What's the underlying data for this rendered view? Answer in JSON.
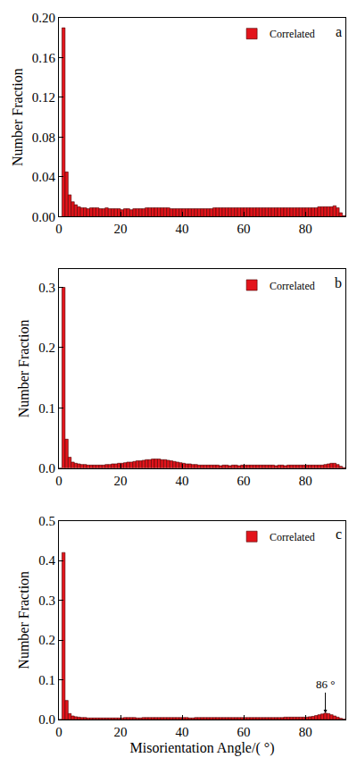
{
  "chart_data": [
    {
      "type": "histogram",
      "title": "a",
      "ylabel": "Number Fraction",
      "legend": "top right",
      "xlim": [
        0,
        93
      ],
      "xticks": [
        0,
        20,
        40,
        60,
        80
      ],
      "ylim": [
        0,
        0.2
      ],
      "yticks": [
        {
          "value": 0,
          "label": "0.00"
        },
        {
          "value": 0.04,
          "label": "0.04"
        },
        {
          "value": 0.08,
          "label": "0.08"
        },
        {
          "value": 0.12,
          "label": "0.12"
        },
        {
          "value": 0.16,
          "label": "0.16"
        },
        {
          "value": 0.2,
          "label": "0.20"
        }
      ],
      "bins": [
        0,
        1,
        2,
        3,
        4,
        5,
        6,
        7,
        8,
        9,
        10,
        11,
        12,
        13,
        14,
        15,
        16,
        17,
        18,
        19,
        20,
        21,
        22,
        23,
        24,
        25,
        26,
        27,
        28,
        29,
        30,
        31,
        32,
        33,
        34,
        35,
        36,
        37,
        38,
        39,
        40,
        41,
        42,
        43,
        44,
        45,
        46,
        47,
        48,
        49,
        50,
        51,
        52,
        53,
        54,
        55,
        56,
        57,
        58,
        59,
        60,
        61,
        62,
        63,
        64,
        65,
        66,
        67,
        68,
        69,
        70,
        71,
        72,
        73,
        74,
        75,
        76,
        77,
        78,
        79,
        80,
        81,
        82,
        83,
        84,
        85,
        86,
        87,
        88,
        89,
        90,
        91,
        92,
        93
      ],
      "series": [
        {
          "name": "Correlated",
          "color": "#e3141b",
          "values": [
            0,
            0.19,
            0.045,
            0.022,
            0.015,
            0.012,
            0.01,
            0.009,
            0.009,
            0.008,
            0.009,
            0.009,
            0.009,
            0.008,
            0.008,
            0.009,
            0.008,
            0.008,
            0.008,
            0.008,
            0.007,
            0.008,
            0.008,
            0.007,
            0.008,
            0.008,
            0.008,
            0.008,
            0.009,
            0.009,
            0.009,
            0.009,
            0.009,
            0.009,
            0.009,
            0.009,
            0.008,
            0.008,
            0.008,
            0.008,
            0.008,
            0.008,
            0.008,
            0.008,
            0.008,
            0.008,
            0.008,
            0.008,
            0.008,
            0.008,
            0.009,
            0.009,
            0.009,
            0.009,
            0.009,
            0.009,
            0.009,
            0.009,
            0.009,
            0.009,
            0.009,
            0.009,
            0.009,
            0.009,
            0.009,
            0.009,
            0.009,
            0.009,
            0.009,
            0.009,
            0.009,
            0.009,
            0.009,
            0.009,
            0.009,
            0.009,
            0.009,
            0.009,
            0.009,
            0.009,
            0.009,
            0.009,
            0.009,
            0.009,
            0.01,
            0.01,
            0.01,
            0.01,
            0.01,
            0.011,
            0.009,
            0.004,
            0.001
          ]
        }
      ]
    },
    {
      "type": "histogram",
      "title": "b",
      "ylabel": "Number Fraction",
      "legend": "top right",
      "xlim": [
        0,
        93
      ],
      "xticks": [
        0,
        20,
        40,
        60,
        80
      ],
      "ylim": [
        0,
        0.33
      ],
      "yticks": [
        {
          "value": 0,
          "label": "0.0"
        },
        {
          "value": 0.1,
          "label": "0.1"
        },
        {
          "value": 0.2,
          "label": "0.2"
        },
        {
          "value": 0.3,
          "label": "0.3"
        }
      ],
      "bins": [
        0,
        1,
        2,
        3,
        4,
        5,
        6,
        7,
        8,
        9,
        10,
        11,
        12,
        13,
        14,
        15,
        16,
        17,
        18,
        19,
        20,
        21,
        22,
        23,
        24,
        25,
        26,
        27,
        28,
        29,
        30,
        31,
        32,
        33,
        34,
        35,
        36,
        37,
        38,
        39,
        40,
        41,
        42,
        43,
        44,
        45,
        46,
        47,
        48,
        49,
        50,
        51,
        52,
        53,
        54,
        55,
        56,
        57,
        58,
        59,
        60,
        61,
        62,
        63,
        64,
        65,
        66,
        67,
        68,
        69,
        70,
        71,
        72,
        73,
        74,
        75,
        76,
        77,
        78,
        79,
        80,
        81,
        82,
        83,
        84,
        85,
        86,
        87,
        88,
        89,
        90,
        91,
        92,
        93
      ],
      "series": [
        {
          "name": "Correlated",
          "color": "#e3141b",
          "values": [
            0,
            0.3,
            0.048,
            0.018,
            0.01,
            0.008,
            0.007,
            0.006,
            0.006,
            0.005,
            0.005,
            0.005,
            0.005,
            0.005,
            0.005,
            0.006,
            0.006,
            0.007,
            0.007,
            0.008,
            0.008,
            0.009,
            0.01,
            0.01,
            0.011,
            0.012,
            0.012,
            0.013,
            0.014,
            0.014,
            0.015,
            0.015,
            0.015,
            0.014,
            0.014,
            0.013,
            0.012,
            0.011,
            0.01,
            0.009,
            0.008,
            0.007,
            0.007,
            0.006,
            0.006,
            0.005,
            0.005,
            0.005,
            0.005,
            0.005,
            0.005,
            0.005,
            0.004,
            0.005,
            0.005,
            0.004,
            0.005,
            0.005,
            0.004,
            0.005,
            0.005,
            0.005,
            0.005,
            0.005,
            0.005,
            0.005,
            0.005,
            0.005,
            0.005,
            0.005,
            0.004,
            0.005,
            0.005,
            0.004,
            0.005,
            0.005,
            0.005,
            0.005,
            0.005,
            0.005,
            0.005,
            0.005,
            0.005,
            0.005,
            0.005,
            0.005,
            0.006,
            0.007,
            0.008,
            0.008,
            0.006,
            0.003,
            0.001
          ]
        }
      ]
    },
    {
      "type": "histogram",
      "title": "c",
      "ylabel": "Number Fraction",
      "xlabel": "Misorientation Angle/( °)",
      "legend": "top right",
      "xlim": [
        0,
        93
      ],
      "xticks": [
        0,
        20,
        40,
        60,
        80
      ],
      "ylim": [
        0,
        0.5
      ],
      "yticks": [
        {
          "value": 0,
          "label": "0.0"
        },
        {
          "value": 0.1,
          "label": "0.1"
        },
        {
          "value": 0.2,
          "label": "0.2"
        },
        {
          "value": 0.3,
          "label": "0.3"
        },
        {
          "value": 0.4,
          "label": "0.4"
        },
        {
          "value": 0.5,
          "label": "0.5"
        }
      ],
      "annotations": [
        {
          "text": "86 °",
          "x": 86.5,
          "y": 0.016
        }
      ],
      "bins": [
        0,
        1,
        2,
        3,
        4,
        5,
        6,
        7,
        8,
        9,
        10,
        11,
        12,
        13,
        14,
        15,
        16,
        17,
        18,
        19,
        20,
        21,
        22,
        23,
        24,
        25,
        26,
        27,
        28,
        29,
        30,
        31,
        32,
        33,
        34,
        35,
        36,
        37,
        38,
        39,
        40,
        41,
        42,
        43,
        44,
        45,
        46,
        47,
        48,
        49,
        50,
        51,
        52,
        53,
        54,
        55,
        56,
        57,
        58,
        59,
        60,
        61,
        62,
        63,
        64,
        65,
        66,
        67,
        68,
        69,
        70,
        71,
        72,
        73,
        74,
        75,
        76,
        77,
        78,
        79,
        80,
        81,
        82,
        83,
        84,
        85,
        86,
        87,
        88,
        89,
        90,
        91,
        92,
        93
      ],
      "series": [
        {
          "name": "Correlated",
          "color": "#e3141b",
          "values": [
            0,
            0.42,
            0.048,
            0.015,
            0.009,
            0.007,
            0.006,
            0.005,
            0.005,
            0.004,
            0.004,
            0.004,
            0.004,
            0.004,
            0.004,
            0.004,
            0.004,
            0.004,
            0.004,
            0.004,
            0.004,
            0.005,
            0.005,
            0.005,
            0.005,
            0.004,
            0.004,
            0.005,
            0.005,
            0.005,
            0.005,
            0.005,
            0.005,
            0.005,
            0.005,
            0.005,
            0.005,
            0.005,
            0.005,
            0.005,
            0.005,
            0.005,
            0.004,
            0.004,
            0.005,
            0.005,
            0.005,
            0.005,
            0.005,
            0.005,
            0.005,
            0.005,
            0.005,
            0.005,
            0.005,
            0.005,
            0.005,
            0.005,
            0.005,
            0.005,
            0.005,
            0.005,
            0.005,
            0.005,
            0.005,
            0.005,
            0.005,
            0.005,
            0.005,
            0.005,
            0.005,
            0.005,
            0.005,
            0.006,
            0.006,
            0.006,
            0.006,
            0.006,
            0.006,
            0.006,
            0.006,
            0.007,
            0.008,
            0.01,
            0.012,
            0.014,
            0.016,
            0.015,
            0.012,
            0.009,
            0.006,
            0.003,
            0.001
          ]
        }
      ]
    }
  ]
}
